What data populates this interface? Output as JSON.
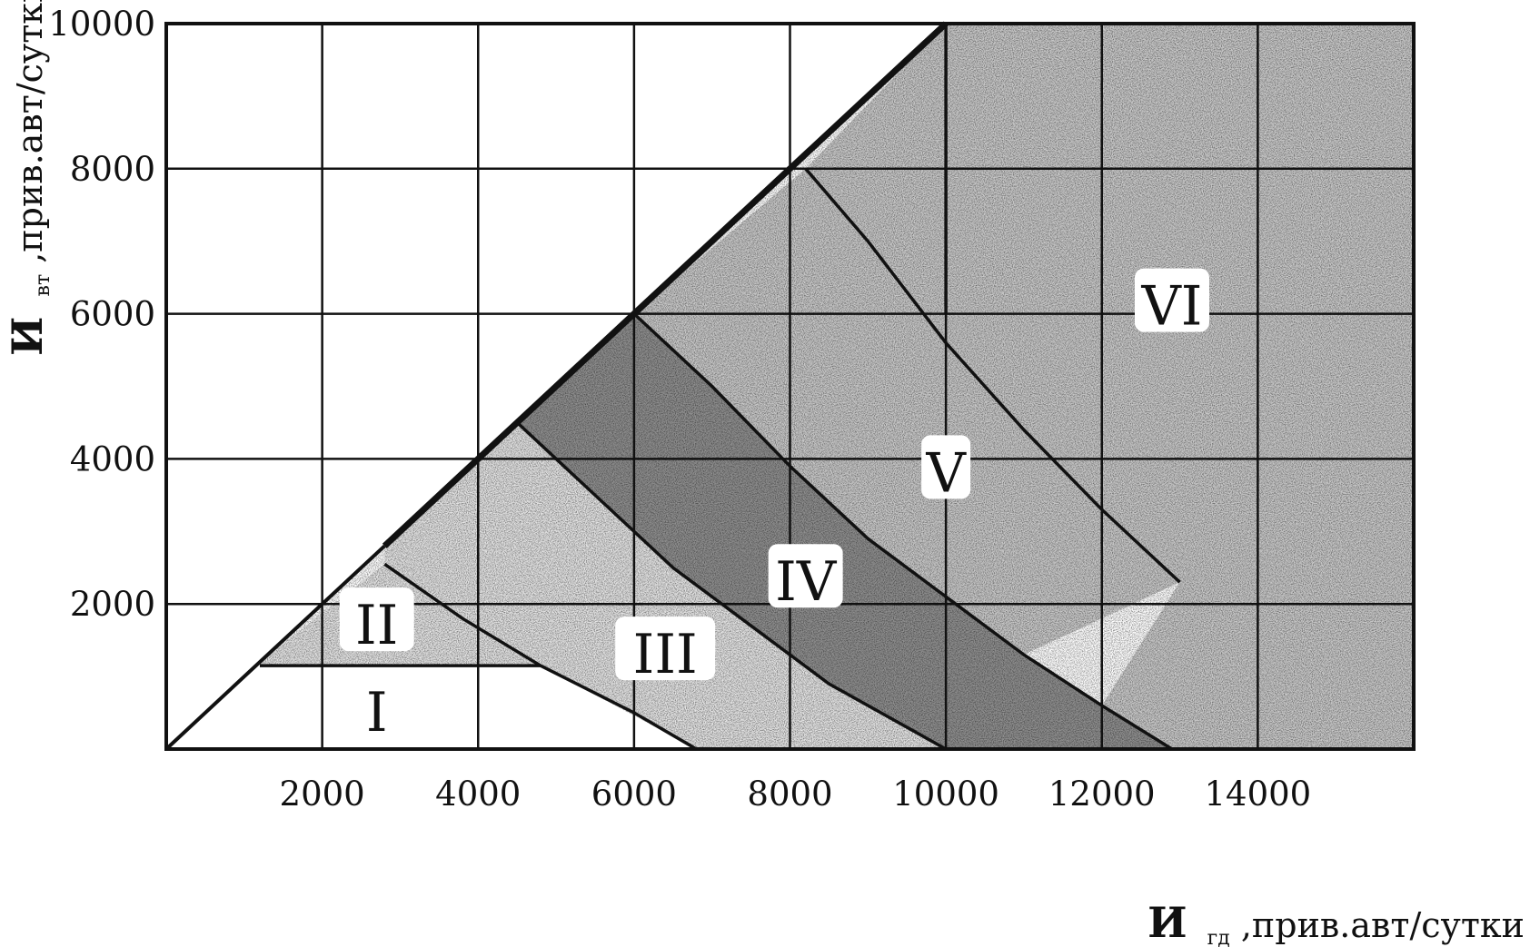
{
  "chart_data": {
    "type": "area",
    "xlabel_main": "И",
    "xlabel_sub": "гд",
    "xlabel_rest": " ,прив.авт/сутки",
    "ylabel_main": "И",
    "ylabel_sub": "вт",
    "ylabel_rest": " ,прив.авт/сутки",
    "xlim": [
      0,
      16000
    ],
    "ylim": [
      0,
      10000
    ],
    "xticks": [
      2000,
      4000,
      6000,
      8000,
      10000,
      12000,
      14000
    ],
    "yticks": [
      2000,
      4000,
      6000,
      8000,
      10000
    ],
    "grid": true,
    "diagonal": {
      "from": [
        0,
        0
      ],
      "to": [
        10000,
        10000
      ]
    },
    "boundaries": [
      {
        "name": "I/II",
        "points": [
          [
            1200,
            1150
          ],
          [
            4800,
            1150
          ]
        ]
      },
      {
        "name": "II/III",
        "points": [
          [
            2800,
            2550
          ],
          [
            3800,
            1800
          ],
          [
            4800,
            1150
          ],
          [
            6000,
            500
          ],
          [
            6800,
            0
          ]
        ]
      },
      {
        "name": "III/IV",
        "points": [
          [
            4500,
            4500
          ],
          [
            5500,
            3500
          ],
          [
            6500,
            2500
          ],
          [
            7500,
            1700
          ],
          [
            8500,
            900
          ],
          [
            10000,
            0
          ]
        ]
      },
      {
        "name": "IV/V",
        "points": [
          [
            6000,
            6000
          ],
          [
            7000,
            5000
          ],
          [
            8000,
            3900
          ],
          [
            9000,
            2900
          ],
          [
            10000,
            2100
          ],
          [
            11000,
            1300
          ],
          [
            12000,
            600
          ],
          [
            12900,
            0
          ]
        ]
      },
      {
        "name": "V/VI",
        "points": [
          [
            8200,
            8000
          ],
          [
            9000,
            7000
          ],
          [
            10000,
            5600
          ],
          [
            11000,
            4400
          ],
          [
            12000,
            3300
          ],
          [
            13000,
            2300
          ]
        ]
      },
      {
        "name": "vertical",
        "points": [
          [
            10000,
            10000
          ],
          [
            10000,
            6000
          ]
        ]
      }
    ],
    "regions": [
      {
        "label": "I",
        "x": 2700,
        "y": 500,
        "shade": "none"
      },
      {
        "label": "II",
        "x": 2700,
        "y": 1700,
        "shade": "light"
      },
      {
        "label": "III",
        "x": 6400,
        "y": 1300,
        "shade": "light"
      },
      {
        "label": "IV",
        "x": 8200,
        "y": 2300,
        "shade": "dark"
      },
      {
        "label": "V",
        "x": 10000,
        "y": 3800,
        "shade": "medium"
      },
      {
        "label": "VI",
        "x": 12900,
        "y": 6100,
        "shade": "medium"
      }
    ],
    "colors": {
      "ink": "#111111",
      "light": "#e4e4e4",
      "medium": "#c9c9c9",
      "dark": "#8f8f8f",
      "label_bg": "#ffffff"
    }
  }
}
